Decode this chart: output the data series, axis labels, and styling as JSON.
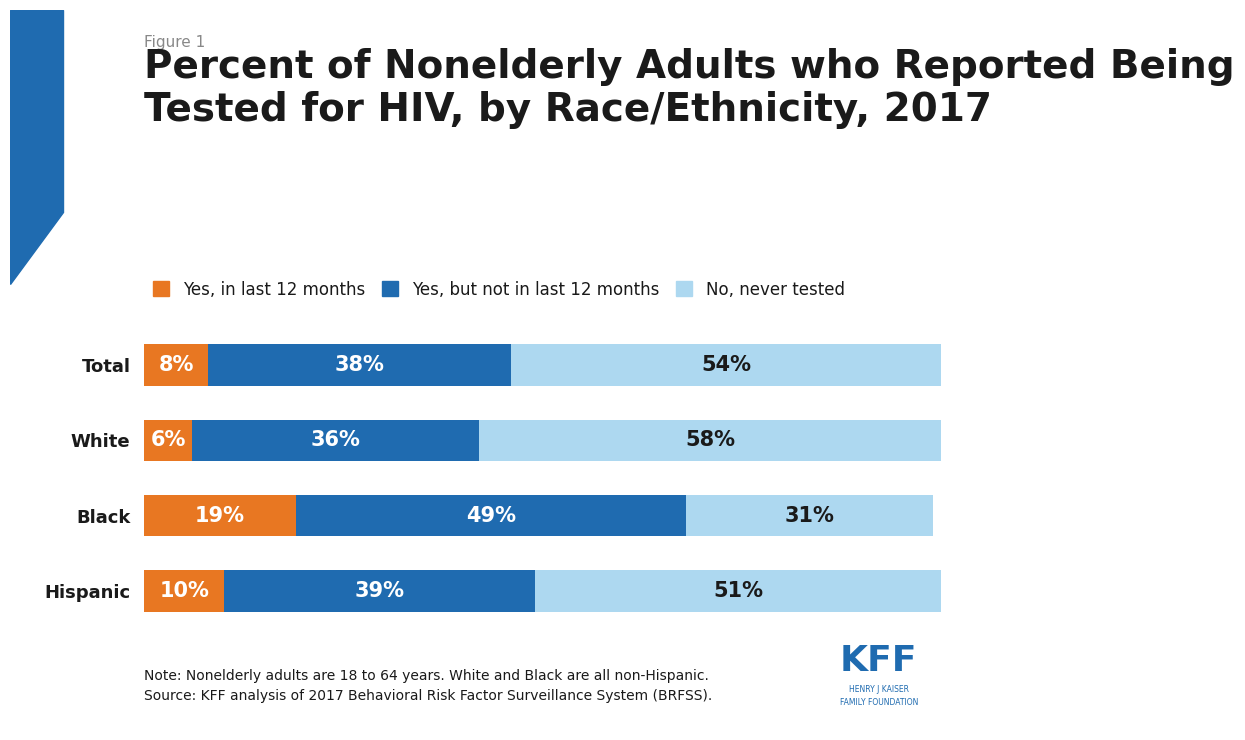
{
  "figure_label": "Figure 1",
  "title_line1": "Percent of Nonelderly Adults who Reported Being",
  "title_line2": "Tested for HIV, by Race/Ethnicity, 2017",
  "categories": [
    "Total",
    "White",
    "Black",
    "Hispanic"
  ],
  "series": {
    "yes_12mo": [
      8,
      6,
      19,
      10
    ],
    "yes_older": [
      38,
      36,
      49,
      39
    ],
    "never": [
      54,
      58,
      31,
      51
    ]
  },
  "colors": {
    "yes_12mo": "#E87722",
    "yes_older": "#1F6BB0",
    "never": "#ADD8F0"
  },
  "legend_labels": [
    "Yes, in last 12 months",
    "Yes, but not in last 12 months",
    "No, never tested"
  ],
  "text_color_dark": "#1a1a1a",
  "text_color_white": "#ffffff",
  "text_color_light_gray": "#888888",
  "note_line1": "Note: Nonelderly adults are 18 to 64 years. White and Black are all non-Hispanic.",
  "note_line2": "Source: KFF analysis of 2017 Behavioral Risk Factor Surveillance System (BRFSS).",
  "bar_height": 0.55,
  "background_color": "#ffffff",
  "title_fontsize": 28,
  "label_fontsize": 13,
  "legend_fontsize": 12,
  "bar_label_fontsize": 15,
  "figure_label_fontsize": 11,
  "note_fontsize": 10,
  "accent_blue": "#1F6BB0"
}
